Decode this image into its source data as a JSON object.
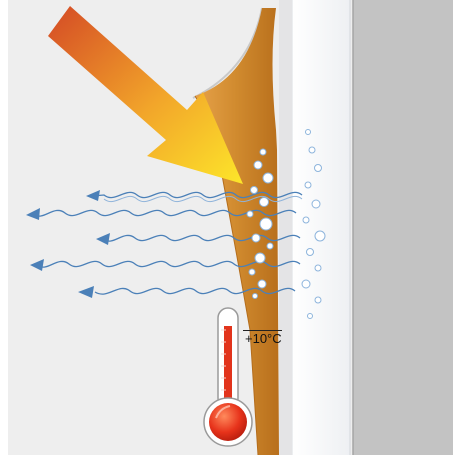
{
  "temperature": {
    "label": "+10°C"
  },
  "colors": {
    "background": "#eeeeee",
    "right_panel": "#c3c3c3",
    "insulation": "#f7f8fa",
    "membrane": "#d38a2c",
    "sun_arrow_start": "#d64a24",
    "sun_arrow_end": "#fde428",
    "heat_waves": "#4b80b8",
    "thermometer_red": "#e2341c"
  },
  "icons": [
    "sun-ray-arrow-icon",
    "heat-wave-arrow-icon",
    "moisture-bubble-icon",
    "thermometer-icon"
  ]
}
